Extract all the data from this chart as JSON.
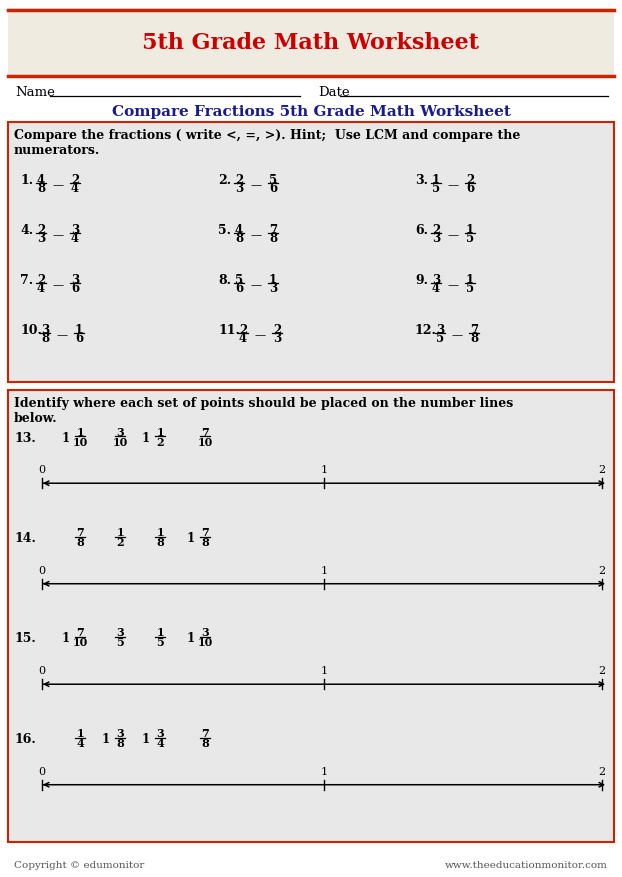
{
  "title": "5th Grade Math Worksheet",
  "subtitle": "Compare Fractions 5th Grade Math Worksheet",
  "title_color": "#cc0000",
  "subtitle_color": "#1a1a8c",
  "header_bg": "#f0ebe0",
  "border_color": "#cc2200",
  "section_bg": "#e8e8e8",
  "name_label": "Name",
  "date_label": "Date",
  "compare_instruction_1": "Compare the fractions ( write <, =, >). Hint;  Use LCM and compare the",
  "compare_instruction_2": "numerators.",
  "compare_problems": [
    [
      "1.",
      "4",
      "8",
      "2",
      "4"
    ],
    [
      "2.",
      "2",
      "3",
      "5",
      "6"
    ],
    [
      "3.",
      "1",
      "5",
      "2",
      "6"
    ],
    [
      "4.",
      "2",
      "3",
      "3",
      "4"
    ],
    [
      "5.",
      "4",
      "8",
      "7",
      "8"
    ],
    [
      "6.",
      "2",
      "3",
      "1",
      "5"
    ],
    [
      "7.",
      "2",
      "4",
      "3",
      "6"
    ],
    [
      "8.",
      "5",
      "6",
      "1",
      "3"
    ],
    [
      "9.",
      "3",
      "4",
      "1",
      "5"
    ],
    [
      "10.",
      "3",
      "8",
      "1",
      "6"
    ],
    [
      "11.",
      "2",
      "4",
      "2",
      "3"
    ],
    [
      "12.",
      "3",
      "5",
      "7",
      "8"
    ]
  ],
  "nl_instruction_1": "Identify where each set of points should be placed on the number lines",
  "nl_instruction_2": "below.",
  "nl_problems": [
    {
      "num": "13.",
      "w1": "1",
      "n1": "1",
      "d1": "10",
      "w2": "",
      "n2": "3",
      "d2": "10",
      "w3": "1",
      "n3": "1",
      "d3": "2",
      "w4": "",
      "n4": "7",
      "d4": "10"
    },
    {
      "num": "14.",
      "w1": "",
      "n1": "7",
      "d1": "8",
      "w2": "",
      "n2": "1",
      "d2": "2",
      "w3": "",
      "n3": "1",
      "d3": "8",
      "w4": "1",
      "n4": "7",
      "d4": "8"
    },
    {
      "num": "15.",
      "w1": "1",
      "n1": "7",
      "d1": "10",
      "w2": "",
      "n2": "3",
      "d2": "5",
      "w3": "",
      "n3": "1",
      "d3": "5",
      "w4": "1",
      "n4": "3",
      "d4": "10"
    },
    {
      "num": "16.",
      "w1": "",
      "n1": "1",
      "d1": "4",
      "w2": "1",
      "n2": "3",
      "d2": "8",
      "w3": "1",
      "n3": "3",
      "d3": "4",
      "w4": "",
      "n4": "7",
      "d4": "8"
    }
  ],
  "footer_left": "Copyright © edumonitor",
  "footer_right": "www.theeducationmonitor.com",
  "bg_color": "#ffffff"
}
